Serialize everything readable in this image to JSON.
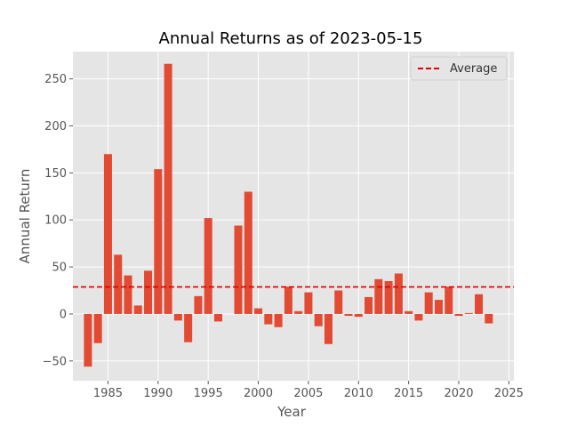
{
  "chart_data": {
    "type": "bar",
    "title": "Annual Returns as of  2023-05-15",
    "xlabel": "Year",
    "ylabel": "Annual Return",
    "x": [
      1983,
      1984,
      1985,
      1986,
      1987,
      1988,
      1989,
      1990,
      1991,
      1992,
      1993,
      1994,
      1995,
      1996,
      1997,
      1998,
      1999,
      2000,
      2001,
      2002,
      2003,
      2004,
      2005,
      2006,
      2007,
      2008,
      2009,
      2010,
      2011,
      2012,
      2013,
      2014,
      2015,
      2016,
      2017,
      2018,
      2019,
      2020,
      2021,
      2022,
      2023
    ],
    "values": [
      -56,
      -31,
      170,
      63,
      41,
      9,
      46,
      154,
      266,
      -7,
      -30,
      19,
      102,
      -8,
      0,
      94,
      130,
      6,
      -11,
      -14,
      29,
      3,
      23,
      -13,
      -32,
      25,
      -2,
      -3,
      18,
      37,
      35,
      43,
      3,
      -7,
      23,
      15,
      29,
      -2,
      1,
      21,
      -10
    ],
    "xlim": [
      1981.5,
      2025.5
    ],
    "ylim": [
      -71,
      279
    ],
    "xticks": [
      1985,
      1990,
      1995,
      2000,
      2005,
      2010,
      2015,
      2020,
      2025
    ],
    "yticks": [
      -50,
      0,
      50,
      100,
      150,
      200,
      250
    ],
    "average": 28.7,
    "legend": {
      "entries": [
        "Average"
      ],
      "placement": "top-right"
    },
    "grid": true,
    "colors": {
      "bar": "#E24A33",
      "average_line": "#DD0000",
      "plot_background": "#E5E5E5",
      "grid": "#FFFFFF"
    }
  }
}
